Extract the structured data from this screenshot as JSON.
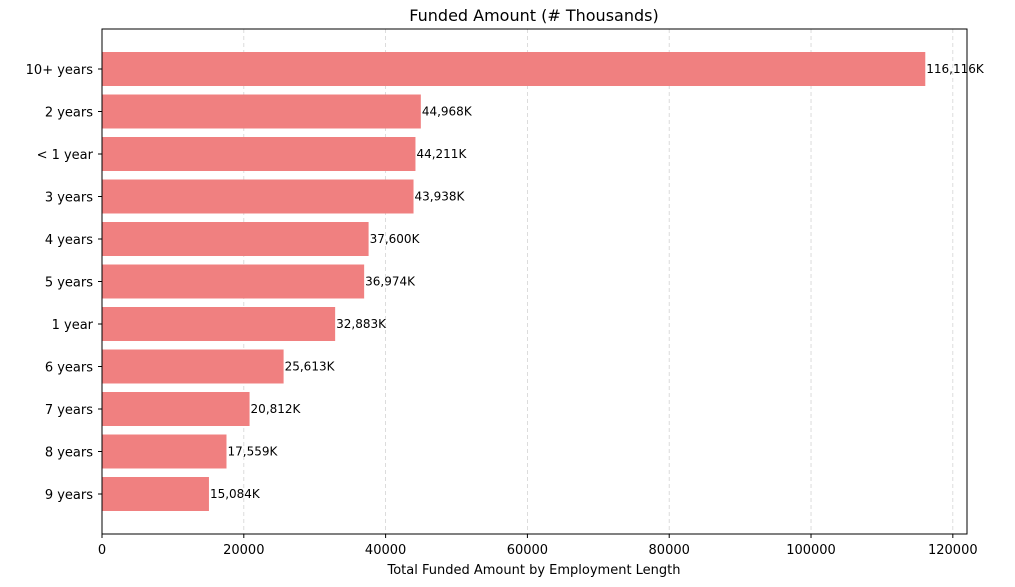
{
  "chart_data": {
    "type": "bar",
    "orientation": "horizontal",
    "title": "Funded Amount (# Thousands)",
    "xlabel": "Total Funded Amount by Employment Length",
    "ylabel": "",
    "categories": [
      "10+ years",
      "2 years",
      "< 1 year",
      "3 years",
      "4 years",
      "5 years",
      "1 year",
      "6 years",
      "7 years",
      "8 years",
      "9 years"
    ],
    "values": [
      116116,
      44968,
      44211,
      43938,
      37600,
      36974,
      32883,
      25613,
      20812,
      17559,
      15084
    ],
    "data_labels": [
      "116,116K",
      "44,968K",
      "44,211K",
      "43,938K",
      "37,600K",
      "36,974K",
      "32,883K",
      "25,613K",
      "20,812K",
      "17,559K",
      "15,084K"
    ],
    "xlim": [
      0,
      122000
    ],
    "xticks": [
      0,
      20000,
      40000,
      60000,
      80000,
      100000,
      120000
    ],
    "xtick_labels": [
      "0",
      "20000",
      "40000",
      "60000",
      "80000",
      "100000",
      "120000"
    ],
    "grid": {
      "x": true,
      "y": false,
      "style": "dashed"
    },
    "bar_color": "#f08080",
    "grid_color": "#d3d3d3"
  }
}
